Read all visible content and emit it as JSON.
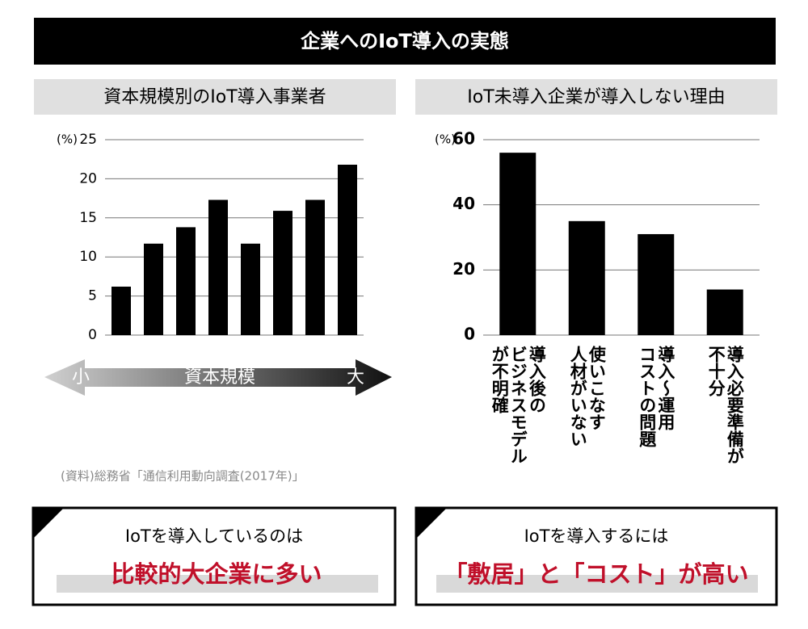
{
  "title": "企業へのIoT導入の実態",
  "chart_data": [
    {
      "type": "bar",
      "title": "資本規模別のIoT導入事業者",
      "y_unit": "(%)",
      "categories": [
        null,
        null,
        null,
        null,
        null,
        null,
        null,
        null
      ],
      "values": [
        6.2,
        11.7,
        13.8,
        17.3,
        11.7,
        15.9,
        17.3,
        21.8
      ],
      "color": "#000000",
      "ylim": [
        0,
        25
      ],
      "yticks": [
        0,
        5,
        10,
        15,
        20,
        25
      ],
      "grid": true,
      "x_axis": {
        "low": "小",
        "label": "資本規模",
        "high": "大"
      }
    },
    {
      "type": "bar",
      "title": "IoT未導入企業が導入しない理由",
      "y_unit": "(%)",
      "categories": [
        "導入後の\nビジネスモデル\nが不明確",
        "使いこなす\n人材がいない",
        "導入～運用\nコストの問題",
        "導入必要準備が\n不十分"
      ],
      "values": [
        56,
        35,
        31,
        14
      ],
      "color": "#000000",
      "ylim": [
        0,
        60
      ],
      "yticks": [
        0,
        20,
        40,
        60
      ],
      "grid": true
    }
  ],
  "source": "(資料)総務省「通信利用動向調査(2017年)」",
  "boxes": [
    {
      "lead": "IoTを導入しているのは",
      "highlight": "比較的大企業に多い"
    },
    {
      "lead": "IoTを導入するには",
      "highlight": "「敷居」と「コスト」が高い"
    }
  ]
}
